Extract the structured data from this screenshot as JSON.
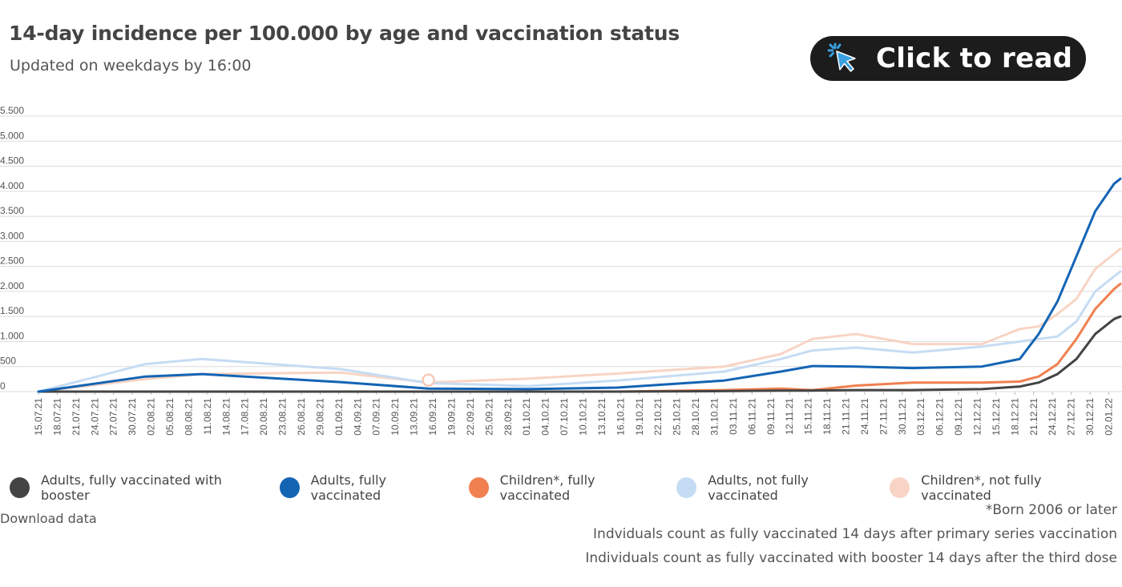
{
  "header": {
    "title": "14-day incidence per 100.000 by age and vaccination status",
    "subtitle": "Updated on weekdays by 16:00"
  },
  "cta": {
    "label": "Click to read",
    "icon": "cursor-click-icon",
    "icon_color": "#3aa0e0"
  },
  "download_label": "Download data",
  "notes": [
    "*Born 2006 or later",
    "Indviduals count as fully vaccinated 14 days after primary series vaccination",
    "Individuals count as fully vaccinated with booster 14 days after the third dose"
  ],
  "chart_data": {
    "type": "line",
    "title": "14-day incidence per 100.000 by age and vaccination status",
    "xlabel": "",
    "ylabel": "",
    "ylim": [
      0,
      5500
    ],
    "yticks": [
      0,
      500,
      1000,
      1500,
      2000,
      2500,
      3000,
      3500,
      4000,
      4500,
      5000,
      5500
    ],
    "ytick_labels": [
      "0",
      "500",
      "1.000",
      "1.500",
      "2.000",
      "2.500",
      "3.000",
      "3.500",
      "4.000",
      "4.500",
      "5.000",
      "5.500"
    ],
    "grid": true,
    "legend_position": "bottom",
    "x_tick_labels": [
      "15.07.21",
      "18.07.21",
      "21.07.21",
      "24.07.21",
      "27.07.21",
      "30.07.21",
      "02.08.21",
      "05.08.21",
      "08.08.21",
      "11.08.21",
      "14.08.21",
      "17.08.21",
      "20.08.21",
      "23.08.21",
      "26.08.21",
      "29.08.21",
      "01.09.21",
      "04.09.21",
      "07.09.21",
      "10.09.21",
      "13.09.21",
      "16.09.21",
      "19.09.21",
      "22.09.21",
      "25.09.21",
      "28.09.21",
      "01.10.21",
      "04.10.21",
      "07.10.21",
      "10.10.21",
      "13.10.21",
      "16.10.21",
      "19.10.21",
      "22.10.21",
      "25.10.21",
      "28.10.21",
      "31.10.21",
      "03.11.21",
      "06.11.21",
      "09.11.21",
      "12.11.21",
      "15.11.21",
      "18.11.21",
      "21.11.21",
      "24.11.21",
      "27.11.21",
      "30.11.21",
      "03.12.21",
      "06.12.21",
      "09.12.21",
      "12.12.21",
      "15.12.21",
      "18.12.21",
      "21.12.21",
      "24.12.21",
      "27.12.21",
      "30.12.21",
      "02.01.22"
    ],
    "x_dates": [
      "2021-07-15",
      "2021-08-01",
      "2021-08-10",
      "2021-09-01",
      "2021-09-15",
      "2021-10-01",
      "2021-10-15",
      "2021-11-01",
      "2021-11-10",
      "2021-11-15",
      "2021-11-22",
      "2021-12-01",
      "2021-12-12",
      "2021-12-18",
      "2021-12-21",
      "2021-12-24",
      "2021-12-27",
      "2021-12-30",
      "2022-01-02",
      "2022-01-03"
    ],
    "series": [
      {
        "name": "Adults, fully vaccinated with booster",
        "color": "#444444",
        "values": [
          0,
          0,
          0,
          0,
          0,
          0,
          0,
          10,
          20,
          20,
          30,
          30,
          50,
          100,
          180,
          350,
          650,
          1150,
          1450,
          1500
        ]
      },
      {
        "name": "Adults, fully vaccinated",
        "color": "#1464b4",
        "values": [
          0,
          300,
          350,
          190,
          60,
          50,
          80,
          220,
          400,
          510,
          500,
          470,
          500,
          650,
          1150,
          1800,
          2700,
          3600,
          4150,
          4250
        ]
      },
      {
        "name": "Children*, fully vaccinated",
        "color": "#f08050",
        "values": [
          0,
          0,
          0,
          0,
          0,
          0,
          0,
          30,
          60,
          30,
          120,
          180,
          180,
          200,
          300,
          550,
          1050,
          1650,
          2050,
          2150
        ]
      },
      {
        "name": "Adults, not fully vaccinated",
        "color": "#c6dcf4",
        "values": [
          0,
          550,
          650,
          450,
          170,
          110,
          220,
          400,
          650,
          820,
          880,
          780,
          900,
          1000,
          1050,
          1100,
          1400,
          2000,
          2300,
          2400
        ]
      },
      {
        "name": "Children*, not fully vaccinated",
        "color": "#f8d4c4",
        "values": [
          0,
          250,
          350,
          380,
          180,
          260,
          360,
          500,
          750,
          1050,
          1150,
          950,
          950,
          1250,
          1300,
          1550,
          1850,
          2450,
          2750,
          2850
        ]
      }
    ],
    "annotations": [
      {
        "type": "hover-marker",
        "date": "2021-09-15",
        "value": 230
      }
    ]
  }
}
